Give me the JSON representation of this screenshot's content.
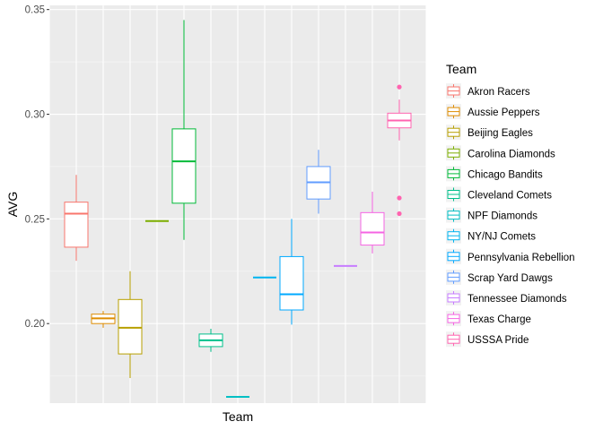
{
  "chart_data": {
    "type": "boxplot",
    "xlabel": "Team",
    "ylabel": "AVG",
    "ylim": [
      0.162,
      0.352
    ],
    "yticks": [
      0.2,
      0.25,
      0.3,
      0.35
    ],
    "ytick_labels": [
      "0.20",
      "0.25",
      "0.30",
      "0.35"
    ],
    "grid": true,
    "legend": {
      "title": "Team",
      "position": "right"
    },
    "series": [
      {
        "name": "Akron Racers",
        "color": "#F8766D",
        "min": 0.23,
        "q1": 0.2365,
        "median": 0.2525,
        "q3": 0.258,
        "max": 0.271,
        "outliers": []
      },
      {
        "name": "Aussie Peppers",
        "color": "#DE8C00",
        "min": 0.198,
        "q1": 0.2,
        "median": 0.2025,
        "q3": 0.2045,
        "max": 0.206,
        "outliers": []
      },
      {
        "name": "Beijing Eagles",
        "color": "#B79F00",
        "min": 0.174,
        "q1": 0.1855,
        "median": 0.198,
        "q3": 0.2115,
        "max": 0.225,
        "outliers": []
      },
      {
        "name": "Carolina Diamonds",
        "color": "#7CAE00",
        "min": 0.249,
        "q1": 0.249,
        "median": 0.249,
        "q3": 0.249,
        "max": 0.249,
        "outliers": []
      },
      {
        "name": "Chicago Bandits",
        "color": "#00BA38",
        "min": 0.24,
        "q1": 0.2575,
        "median": 0.2775,
        "q3": 0.293,
        "max": 0.345,
        "outliers": []
      },
      {
        "name": "Cleveland Comets",
        "color": "#00C08B",
        "min": 0.1865,
        "q1": 0.189,
        "median": 0.192,
        "q3": 0.195,
        "max": 0.1975,
        "outliers": []
      },
      {
        "name": "NPF Diamonds",
        "color": "#00BFC4",
        "min": 0.165,
        "q1": 0.165,
        "median": 0.165,
        "q3": 0.165,
        "max": 0.165,
        "outliers": []
      },
      {
        "name": "NY/NJ Comets",
        "color": "#00B4F0",
        "min": 0.222,
        "q1": 0.222,
        "median": 0.222,
        "q3": 0.222,
        "max": 0.222,
        "outliers": []
      },
      {
        "name": "Pennsylvania Rebellion",
        "color": "#00A9FF",
        "min": 0.1995,
        "q1": 0.2065,
        "median": 0.214,
        "q3": 0.232,
        "max": 0.25,
        "outliers": []
      },
      {
        "name": "Scrap Yard Dawgs",
        "color": "#619CFF",
        "min": 0.2525,
        "q1": 0.2595,
        "median": 0.2675,
        "q3": 0.275,
        "max": 0.283,
        "outliers": []
      },
      {
        "name": "Tennessee Diamonds",
        "color": "#C77CFF",
        "min": 0.2275,
        "q1": 0.2275,
        "median": 0.2275,
        "q3": 0.2275,
        "max": 0.2275,
        "outliers": []
      },
      {
        "name": "Texas Charge",
        "color": "#F564E3",
        "min": 0.2335,
        "q1": 0.2375,
        "median": 0.2435,
        "q3": 0.253,
        "max": 0.263,
        "outliers": []
      },
      {
        "name": "USSSA Pride",
        "color": "#FF64B0",
        "min": 0.2875,
        "q1": 0.2935,
        "median": 0.297,
        "q3": 0.3005,
        "max": 0.307,
        "outliers": [
          0.313,
          0.26,
          0.2525
        ]
      }
    ]
  }
}
